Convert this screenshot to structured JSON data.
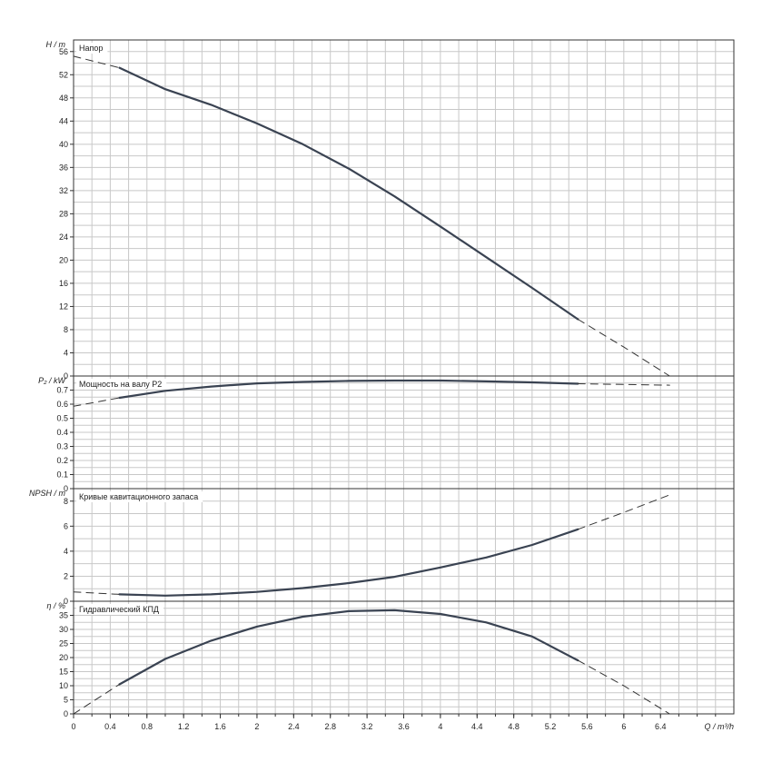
{
  "x_axis": {
    "label": "Q / m³/h",
    "ticks": [
      "0",
      "0.4",
      "0.8",
      "1.2",
      "1.6",
      "2",
      "2.4",
      "2.8",
      "3.2",
      "3.6",
      "4",
      "4.4",
      "4.8",
      "5.2",
      "5.6",
      "6",
      "6.4"
    ]
  },
  "chart_data": [
    {
      "type": "line",
      "title": "Напор",
      "ylabel": "H / m",
      "xlim": [
        0,
        7.2
      ],
      "ylim": [
        0,
        58
      ],
      "yticks": [
        "0",
        "4",
        "8",
        "12",
        "16",
        "20",
        "24",
        "28",
        "32",
        "36",
        "40",
        "44",
        "48",
        "52",
        "56"
      ],
      "grid": true,
      "series": [
        {
          "style": "solid",
          "x": [
            0.5,
            1.0,
            1.5,
            2.0,
            2.5,
            3.0,
            3.5,
            4.0,
            4.5,
            5.0,
            5.5
          ],
          "y": [
            53.2,
            49.5,
            46.8,
            43.6,
            40.0,
            35.8,
            31.0,
            25.8,
            20.5,
            15.2,
            9.8
          ]
        },
        {
          "style": "dashed",
          "x": [
            0,
            0.5
          ],
          "y": [
            55.2,
            53.2
          ]
        },
        {
          "style": "dashed",
          "x": [
            5.5,
            6.0,
            6.5
          ],
          "y": [
            9.8,
            5.0,
            0
          ]
        }
      ]
    },
    {
      "type": "line",
      "title": "Мощность на валу P2",
      "ylabel": "P₂ / kW",
      "xlim": [
        0,
        7.2
      ],
      "ylim": [
        0,
        0.8
      ],
      "yticks": [
        "0",
        "0.1",
        "0.2",
        "0.3",
        "0.4",
        "0.5",
        "0.6",
        "0.7"
      ],
      "grid": true,
      "series": [
        {
          "style": "solid",
          "x": [
            0.5,
            1.0,
            1.5,
            2.0,
            2.5,
            3.0,
            3.5,
            4.0,
            4.5,
            5.0,
            5.5
          ],
          "y": [
            0.645,
            0.695,
            0.725,
            0.748,
            0.758,
            0.765,
            0.768,
            0.768,
            0.762,
            0.755,
            0.745
          ]
        },
        {
          "style": "dashed",
          "x": [
            0,
            0.5
          ],
          "y": [
            0.585,
            0.645
          ]
        },
        {
          "style": "dashed",
          "x": [
            5.5,
            6.0,
            6.5
          ],
          "y": [
            0.745,
            0.74,
            0.735
          ]
        }
      ]
    },
    {
      "type": "line",
      "title": "Кривые кавитационного запаса",
      "ylabel": "NPSH / m",
      "xlim": [
        0,
        7.2
      ],
      "ylim": [
        0,
        9
      ],
      "yticks": [
        "0",
        "2",
        "4",
        "6",
        "8"
      ],
      "grid": true,
      "series": [
        {
          "style": "solid",
          "x": [
            0.5,
            1.0,
            1.5,
            2.0,
            2.5,
            3.0,
            3.5,
            4.0,
            4.5,
            5.0,
            5.5
          ],
          "y": [
            0.55,
            0.45,
            0.55,
            0.75,
            1.05,
            1.45,
            1.95,
            2.7,
            3.5,
            4.5,
            5.75
          ]
        },
        {
          "style": "dashed",
          "x": [
            0,
            0.5
          ],
          "y": [
            0.75,
            0.55
          ]
        },
        {
          "style": "dashed",
          "x": [
            5.5,
            6.0,
            6.5
          ],
          "y": [
            5.75,
            7.1,
            8.5
          ]
        }
      ]
    },
    {
      "type": "line",
      "title": "Гидравлический КПД",
      "ylabel": "η / %",
      "xlim": [
        0,
        7.2
      ],
      "ylim": [
        0,
        40
      ],
      "yticks": [
        "0",
        "5",
        "10",
        "15",
        "20",
        "25",
        "30",
        "35"
      ],
      "grid": true,
      "series": [
        {
          "style": "solid",
          "x": [
            0.5,
            1.0,
            1.5,
            2.0,
            2.5,
            3.0,
            3.5,
            4.0,
            4.5,
            5.0,
            5.5
          ],
          "y": [
            10.5,
            19.5,
            26.0,
            31.0,
            34.5,
            36.5,
            36.8,
            35.5,
            32.5,
            27.5,
            19.0
          ]
        },
        {
          "style": "dashed",
          "x": [
            0,
            0.5
          ],
          "y": [
            0,
            10.5
          ]
        },
        {
          "style": "dashed",
          "x": [
            5.5,
            6.0,
            6.5
          ],
          "y": [
            19.0,
            10.0,
            0
          ]
        }
      ]
    }
  ]
}
